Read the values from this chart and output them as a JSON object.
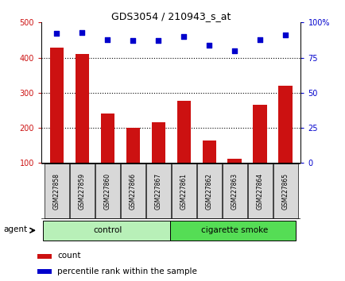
{
  "title": "GDS3054 / 210943_s_at",
  "samples": [
    "GSM227858",
    "GSM227859",
    "GSM227860",
    "GSM227866",
    "GSM227867",
    "GSM227861",
    "GSM227862",
    "GSM227863",
    "GSM227864",
    "GSM227865"
  ],
  "counts": [
    428,
    411,
    241,
    201,
    216,
    276,
    165,
    113,
    265,
    320
  ],
  "percentile_ranks": [
    92,
    93,
    88,
    87,
    87,
    90,
    84,
    80,
    88,
    91
  ],
  "bar_color": "#cc1111",
  "dot_color": "#0000cc",
  "ylim_left": [
    100,
    500
  ],
  "ylim_right": [
    0,
    100
  ],
  "yticks_left": [
    100,
    200,
    300,
    400,
    500
  ],
  "yticks_right": [
    0,
    25,
    50,
    75,
    100
  ],
  "grid_values": [
    200,
    300,
    400
  ],
  "agent_label": "agent",
  "legend_count": "count",
  "legend_pct": "percentile rank within the sample",
  "sample_bg_color": "#d8d8d8",
  "control_color": "#b8f0b8",
  "smoke_color": "#55dd55",
  "control_n": 5,
  "smoke_n": 5
}
